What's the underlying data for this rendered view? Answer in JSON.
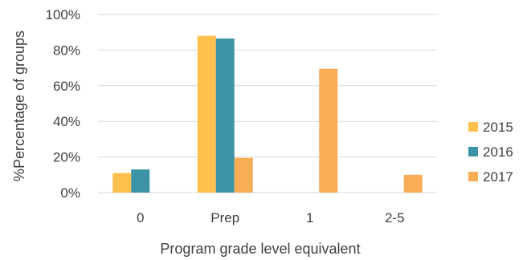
{
  "chart_data": {
    "type": "bar",
    "title": "",
    "xlabel": "Program grade level equivalent",
    "ylabel": "%Percentage of groups",
    "ylim": [
      0,
      100
    ],
    "yticks": [
      "0%",
      "20%",
      "40%",
      "60%",
      "80%",
      "100%"
    ],
    "categories": [
      "0",
      "Prep",
      "1",
      "2-5"
    ],
    "series": [
      {
        "name": "2015",
        "color": "#FFC04D",
        "values": [
          11,
          88,
          0,
          0
        ]
      },
      {
        "name": "2016",
        "color": "#3D93A6",
        "values": [
          13,
          86.5,
          0,
          0
        ]
      },
      {
        "name": "2017",
        "color": "#F8AE57",
        "values": [
          0,
          19.5,
          69.5,
          10
        ]
      }
    ],
    "grid": true,
    "legend": "right"
  }
}
